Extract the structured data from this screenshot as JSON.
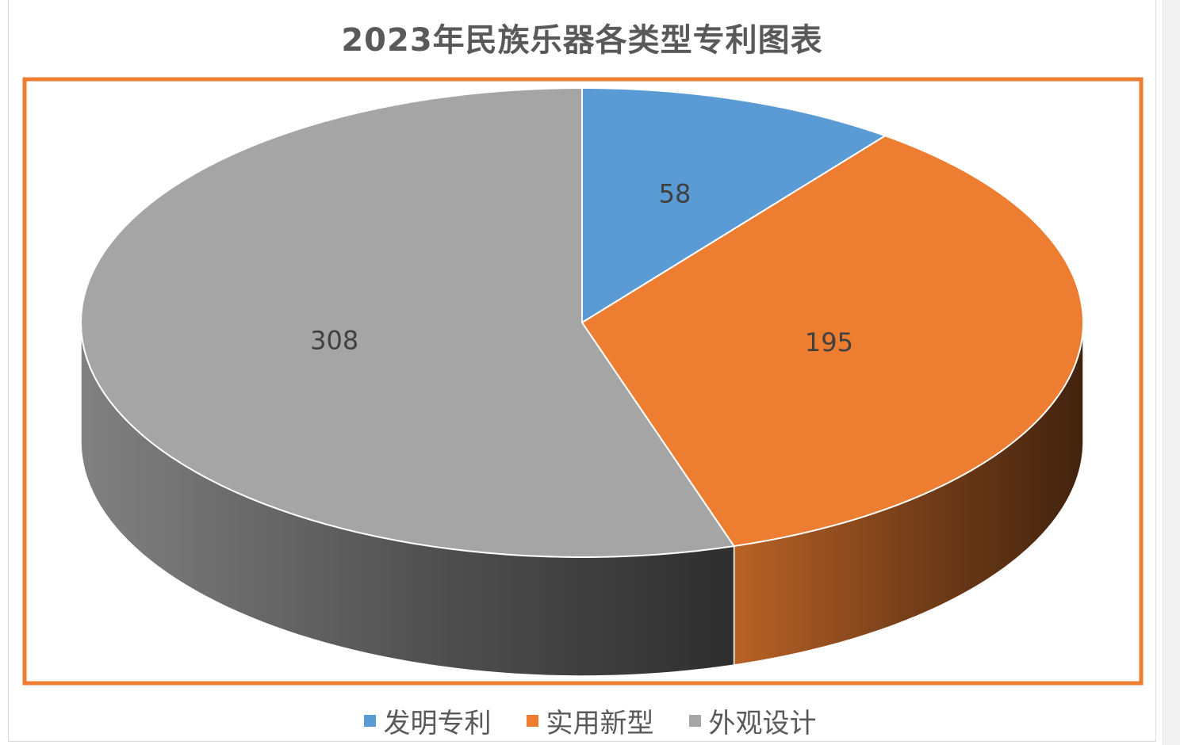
{
  "chart_data": {
    "type": "pie",
    "title": "2023年民族乐器各类型专利图表",
    "categories": [
      "发明专利",
      "实用新型",
      "外观设计"
    ],
    "values": [
      58,
      195,
      308
    ],
    "colors": [
      "#5b9bd5",
      "#ed7d31",
      "#a5a5a5"
    ],
    "data_labels": [
      "58",
      "195",
      "308"
    ],
    "style": "3d",
    "legend": "bottom",
    "selection_highlight": "#ed7d31"
  }
}
